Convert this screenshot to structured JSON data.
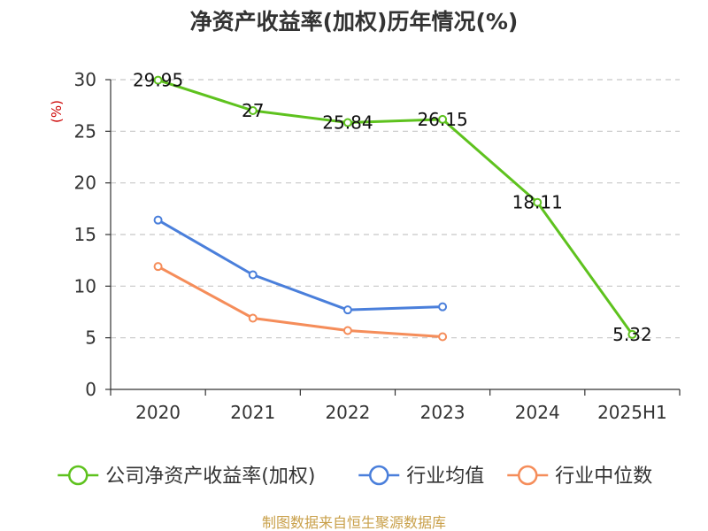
{
  "chart_data": {
    "type": "line",
    "title": "净资产收益率(加权)历年情况(%)",
    "ylabel": "(%)",
    "xlabel": "",
    "categories": [
      "2020",
      "2021",
      "2022",
      "2023",
      "2024",
      "2025H1"
    ],
    "ylim": [
      0,
      30
    ],
    "yticks": [
      0,
      5,
      10,
      15,
      20,
      25,
      30
    ],
    "grid": true,
    "legend_position": "bottom",
    "series": [
      {
        "name": "公司净资产收益率(加权)",
        "color": "#5ec21e",
        "values": [
          29.95,
          27,
          25.84,
          26.15,
          18.11,
          5.32
        ],
        "labels": [
          "29.95",
          "27",
          "25.84",
          "26.15",
          "18.11",
          "5.32"
        ]
      },
      {
        "name": "行业均值",
        "color": "#4a7fdb",
        "values": [
          16.4,
          11.1,
          7.7,
          8.0,
          null,
          null
        ]
      },
      {
        "name": "行业中位数",
        "color": "#f58d5a",
        "values": [
          11.9,
          6.9,
          5.7,
          5.1,
          null,
          null
        ]
      }
    ]
  },
  "watermark": "制图数据来自恒生聚源数据库"
}
